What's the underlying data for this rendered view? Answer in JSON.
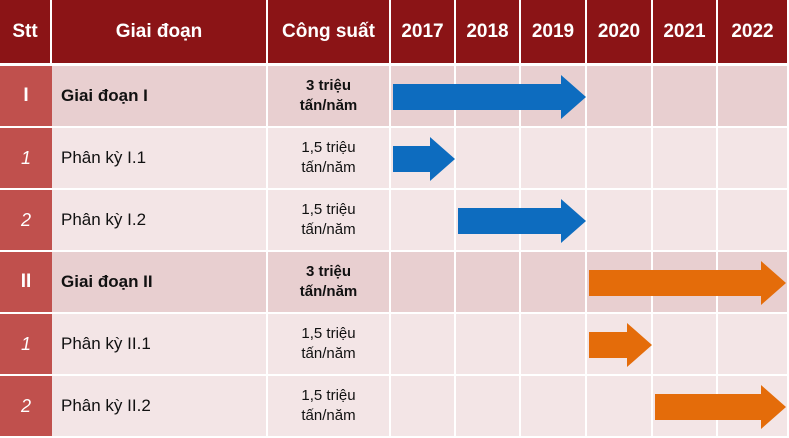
{
  "headers": {
    "stt": "Stt",
    "stage": "Giai đoạn",
    "capacity": "Công suất",
    "years": [
      "2017",
      "2018",
      "2019",
      "2020",
      "2021",
      "2022"
    ]
  },
  "rows": [
    {
      "stt": "I",
      "name": "Giai đoạn I",
      "capacity": [
        "3 triệu",
        "tấn/năm"
      ],
      "level": "main",
      "start": 2017,
      "end": 2019,
      "color": "#0d6cbf"
    },
    {
      "stt": "1",
      "name": "Phân kỳ I.1",
      "capacity": [
        "1,5 triệu",
        "tấn/năm"
      ],
      "level": "sub",
      "start": 2017,
      "end": 2017,
      "color": "#0d6cbf"
    },
    {
      "stt": "2",
      "name": "Phân kỳ I.2",
      "capacity": [
        "1,5 triệu",
        "tấn/năm"
      ],
      "level": "sub",
      "start": 2018,
      "end": 2019,
      "color": "#0d6cbf"
    },
    {
      "stt": "II",
      "name": "Giai đoạn II",
      "capacity": [
        "3 triệu",
        "tấn/năm"
      ],
      "level": "main",
      "start": 2020,
      "end": 2022,
      "color": "#e46c0a"
    },
    {
      "stt": "1",
      "name": "Phân kỳ II.1",
      "capacity": [
        "1,5 triệu",
        "tấn/năm"
      ],
      "level": "sub",
      "start": 2020,
      "end": 2020,
      "color": "#e46c0a"
    },
    {
      "stt": "2",
      "name": "Phân kỳ II.2",
      "capacity": [
        "1,5 triệu",
        "tấn/năm"
      ],
      "level": "sub",
      "start": 2021,
      "end": 2022,
      "color": "#e46c0a"
    }
  ],
  "colors": {
    "header": "#8b1416",
    "stt_column": "#c0504d",
    "stage_row": "#e8cfd0",
    "sub_row": "#f3e5e6",
    "phase1_arrow": "#0d6cbf",
    "phase2_arrow": "#e46c0a"
  }
}
